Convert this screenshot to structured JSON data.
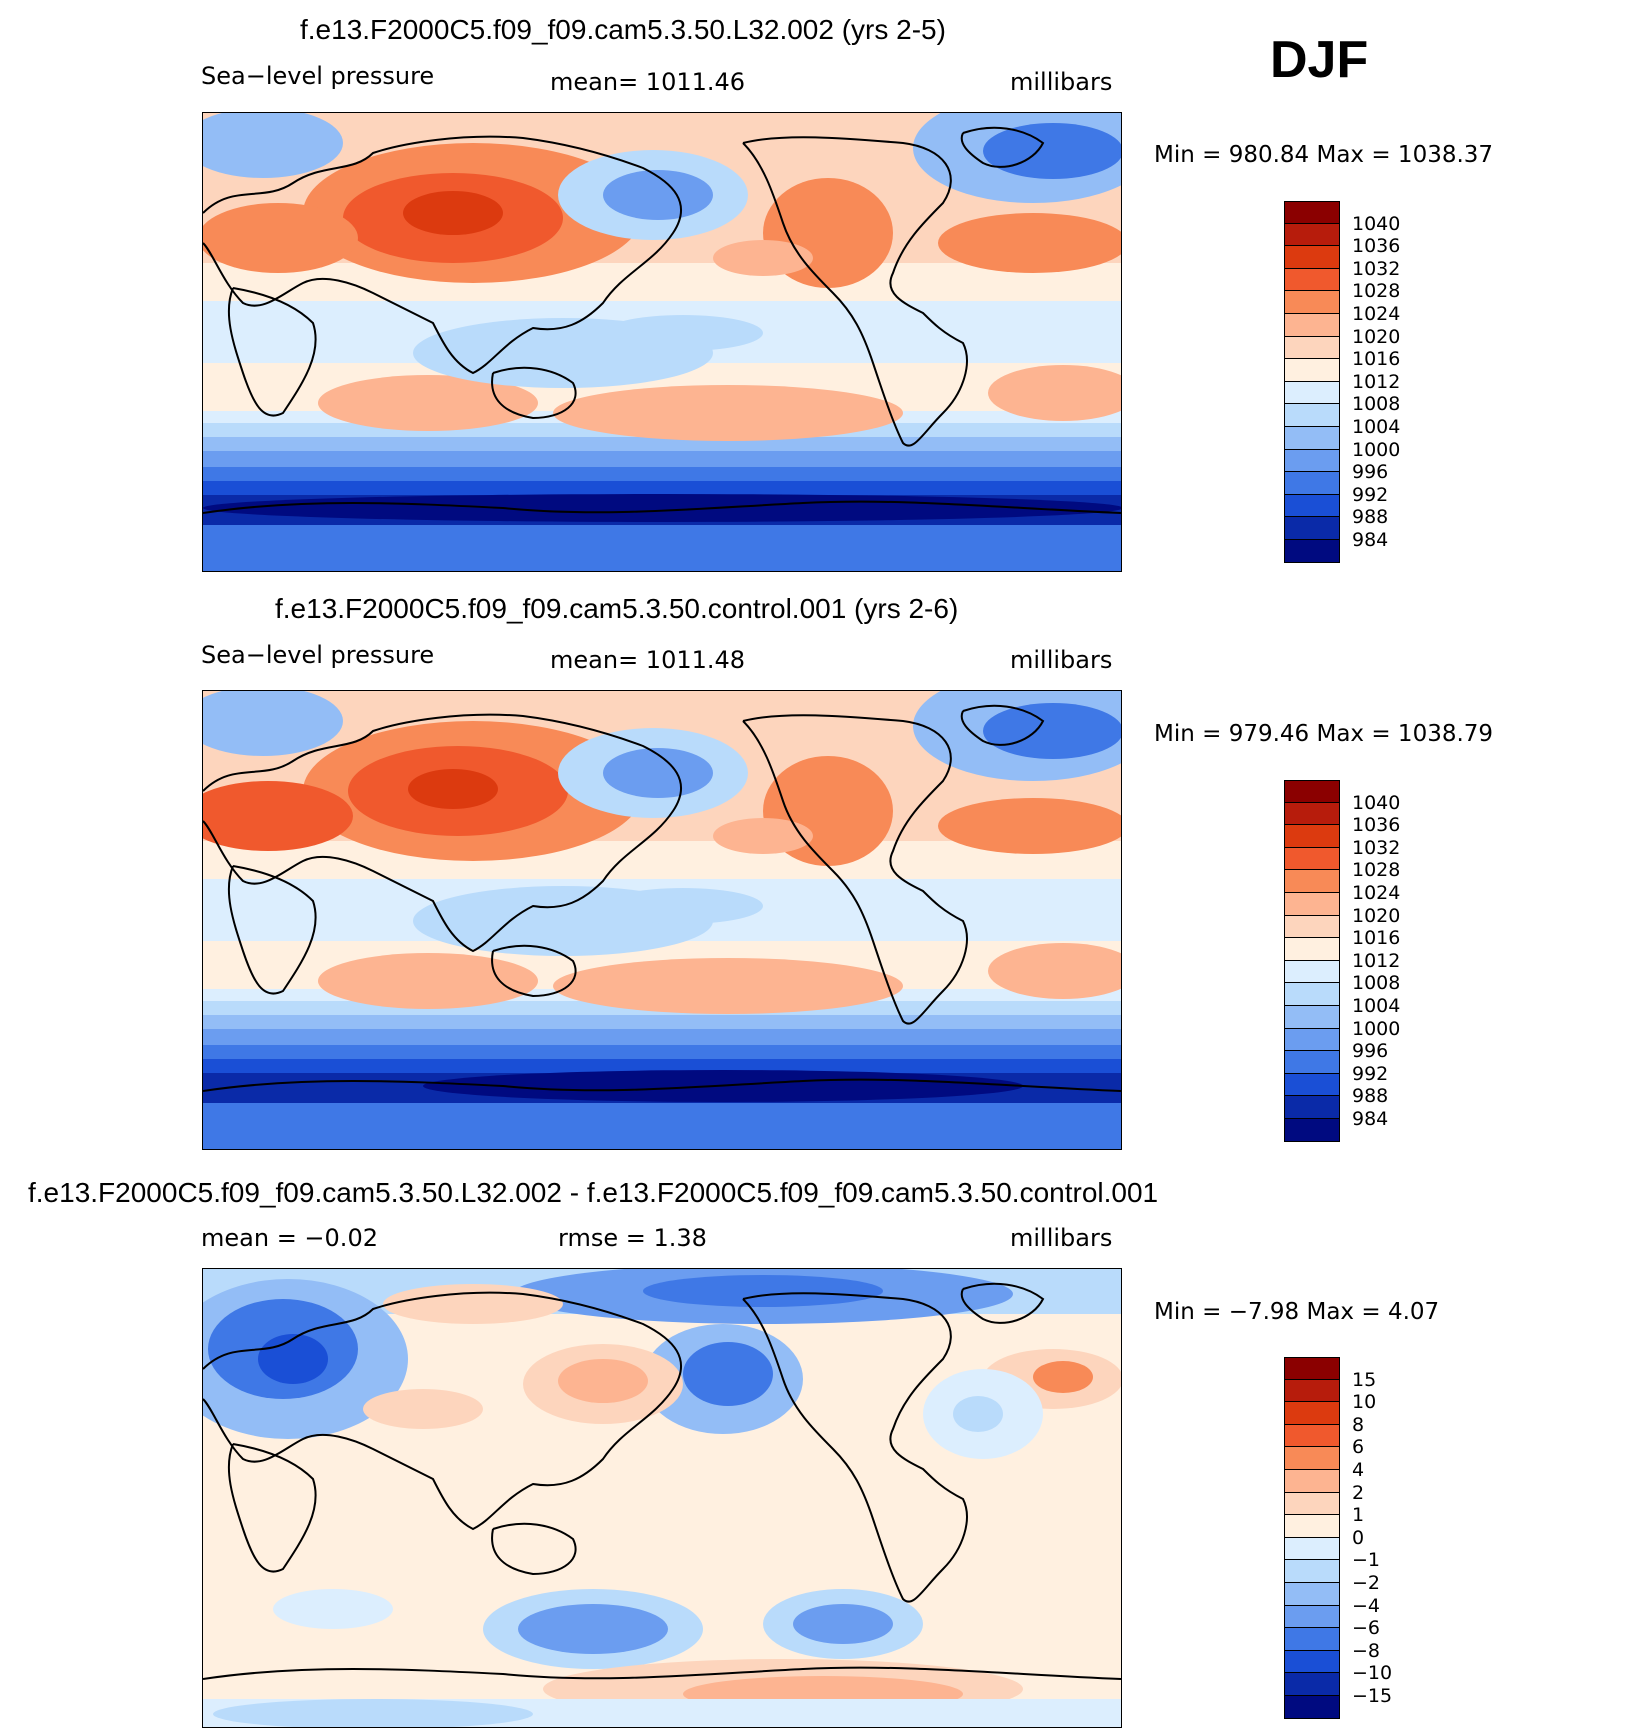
{
  "season": "DJF",
  "panels": [
    {
      "title": "f.e13.F2000C5.f09_f09.cam5.3.50.L32.002 (yrs 2-5)",
      "left_label": "Sea−level pressure",
      "center_label": "mean=  1011.46",
      "right_label": "millibars",
      "minmax": "Min  =  980.84  Max  =  1038.37",
      "colorbar_labels": [
        "1040",
        "1036",
        "1032",
        "1028",
        "1024",
        "1020",
        "1016",
        "1012",
        "1008",
        "1004",
        "1000",
        "996",
        "992",
        "988",
        "984"
      ],
      "colorbar_colors": [
        "#8b0000",
        "#b71c0c",
        "#dc3a0f",
        "#f0592d",
        "#f88a57",
        "#fdb491",
        "#fdd5bd",
        "#fff0e0",
        "#dceefe",
        "#b9dbfb",
        "#93bdf6",
        "#6b9df0",
        "#3f78e6",
        "#1a4fd6",
        "#0a2aa8",
        "#000a80"
      ]
    },
    {
      "title": "f.e13.F2000C5.f09_f09.cam5.3.50.control.001 (yrs 2-6)",
      "left_label": "Sea−level pressure",
      "center_label": "mean=  1011.48",
      "right_label": "millibars",
      "minmax": "Min  =  979.46  Max  =  1038.79",
      "colorbar_labels": [
        "1040",
        "1036",
        "1032",
        "1028",
        "1024",
        "1020",
        "1016",
        "1012",
        "1008",
        "1004",
        "1000",
        "996",
        "992",
        "988",
        "984"
      ],
      "colorbar_colors": [
        "#8b0000",
        "#b71c0c",
        "#dc3a0f",
        "#f0592d",
        "#f88a57",
        "#fdb491",
        "#fdd5bd",
        "#fff0e0",
        "#dceefe",
        "#b9dbfb",
        "#93bdf6",
        "#6b9df0",
        "#3f78e6",
        "#1a4fd6",
        "#0a2aa8",
        "#000a80"
      ]
    },
    {
      "title": "f.e13.F2000C5.f09_f09.cam5.3.50.L32.002 - f.e13.F2000C5.f09_f09.cam5.3.50.control.001",
      "left_label": "mean  =    −0.02",
      "center_label": "rmse  =     1.38",
      "right_label": "millibars",
      "minmax": "Min  =    −7.98  Max  =     4.07",
      "colorbar_labels": [
        "15",
        "10",
        "8",
        "6",
        "4",
        "2",
        "1",
        "0",
        "−1",
        "−2",
        "−4",
        "−6",
        "−8",
        "−10",
        "−15"
      ],
      "colorbar_colors": [
        "#8b0000",
        "#b71c0c",
        "#dc3a0f",
        "#f0592d",
        "#f88a57",
        "#fdb491",
        "#fdd5bd",
        "#fff0e0",
        "#dceefe",
        "#b9dbfb",
        "#93bdf6",
        "#6b9df0",
        "#3f78e6",
        "#1a4fd6",
        "#0a2aa8",
        "#000a80"
      ]
    }
  ]
}
